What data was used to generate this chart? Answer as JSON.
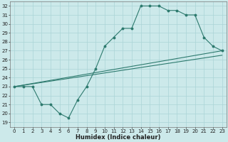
{
  "xlabel": "Humidex (Indice chaleur)",
  "xlim": [
    -0.5,
    23.5
  ],
  "ylim": [
    18.5,
    32.5
  ],
  "xticks": [
    0,
    1,
    2,
    3,
    4,
    5,
    6,
    7,
    8,
    9,
    10,
    11,
    12,
    13,
    14,
    15,
    16,
    17,
    18,
    19,
    20,
    21,
    22,
    23
  ],
  "yticks": [
    19,
    20,
    21,
    22,
    23,
    24,
    25,
    26,
    27,
    28,
    29,
    30,
    31,
    32
  ],
  "bg_color": "#cce9ea",
  "grid_color": "#aad4d6",
  "line_color": "#2d7a6e",
  "line1_x": [
    0,
    1,
    2,
    3,
    4,
    5,
    6,
    7,
    8,
    9,
    10,
    11,
    12,
    13,
    14,
    15,
    16,
    17,
    18,
    19,
    20,
    21,
    22,
    23
  ],
  "line1_y": [
    23,
    23,
    23,
    21,
    21,
    20,
    19.5,
    21.5,
    23,
    25,
    27.5,
    28.5,
    29.5,
    29.5,
    32,
    32,
    32,
    31.5,
    31.5,
    31,
    31,
    28.5,
    27.5,
    27
  ],
  "line2_x": [
    0,
    23
  ],
  "line2_y": [
    23,
    26.5
  ],
  "line3_x": [
    0,
    23
  ],
  "line3_y": [
    23,
    27
  ],
  "tick_fontsize": 5.0,
  "label_fontsize": 6.0
}
